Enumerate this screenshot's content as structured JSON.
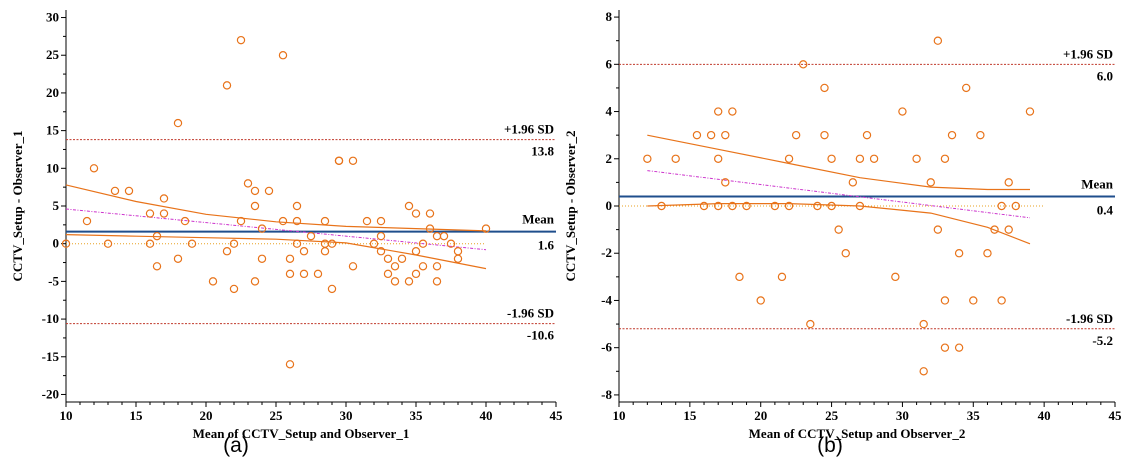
{
  "colors": {
    "points": "#E8731A",
    "mean_line": "#1F4E8C",
    "sd_line": "#C0392B",
    "ci_line": "#E8731A",
    "regression_line": "#CC33CC",
    "zero_line": "#E8A020"
  },
  "chart_data": [
    {
      "type": "scatter",
      "panel_label": "(a)",
      "xlabel": "Mean of CCTV_Setup and Observer_1",
      "ylabel": "CCTV_Setup - Observer_1",
      "xlim": [
        10,
        45
      ],
      "ylim": [
        -21,
        31
      ],
      "x_ticks": [
        10,
        15,
        20,
        25,
        30,
        35,
        40,
        45
      ],
      "y_ticks": [
        -20,
        -15,
        -10,
        -5,
        0,
        5,
        10,
        15,
        20,
        25,
        30
      ],
      "mean": {
        "label": "Mean",
        "value_label": "1.6",
        "value": 1.6
      },
      "upper_loa": {
        "label": "+1.96 SD",
        "value_label": "13.8",
        "value": 13.8
      },
      "lower_loa": {
        "label": "-1.96 SD",
        "value_label": "-10.6",
        "value": -10.6
      },
      "regression": {
        "x": [
          10,
          40
        ],
        "y": [
          4.6,
          -0.8
        ]
      },
      "ci_upper": {
        "x": [
          10,
          15,
          20,
          25,
          30,
          35,
          40
        ],
        "y": [
          7.8,
          5.6,
          3.9,
          2.9,
          2.3,
          2.0,
          1.7
        ]
      },
      "ci_lower": {
        "x": [
          10,
          15,
          20,
          25,
          30,
          35,
          40
        ],
        "y": [
          1.2,
          1.0,
          0.8,
          0.6,
          0.1,
          -1.5,
          -3.3
        ]
      },
      "points": [
        {
          "x": 10,
          "y": 0
        },
        {
          "x": 11.5,
          "y": 3
        },
        {
          "x": 12,
          "y": 10
        },
        {
          "x": 13,
          "y": 0
        },
        {
          "x": 13.5,
          "y": 7
        },
        {
          "x": 14.5,
          "y": 7
        },
        {
          "x": 16,
          "y": 0
        },
        {
          "x": 16,
          "y": 4
        },
        {
          "x": 16.5,
          "y": 1
        },
        {
          "x": 16.5,
          "y": -3
        },
        {
          "x": 17,
          "y": 4
        },
        {
          "x": 17,
          "y": 6
        },
        {
          "x": 18,
          "y": 16
        },
        {
          "x": 18,
          "y": -2
        },
        {
          "x": 18.5,
          "y": 3
        },
        {
          "x": 19,
          "y": 0
        },
        {
          "x": 20.5,
          "y": -5
        },
        {
          "x": 21.5,
          "y": 21
        },
        {
          "x": 21.5,
          "y": -1
        },
        {
          "x": 22,
          "y": 0
        },
        {
          "x": 22,
          "y": -6
        },
        {
          "x": 22.5,
          "y": 27
        },
        {
          "x": 22.5,
          "y": 3
        },
        {
          "x": 23,
          "y": 8
        },
        {
          "x": 23.5,
          "y": 7
        },
        {
          "x": 23.5,
          "y": 5
        },
        {
          "x": 23.5,
          "y": -5
        },
        {
          "x": 24,
          "y": 2
        },
        {
          "x": 24,
          "y": -2
        },
        {
          "x": 24.5,
          "y": 7
        },
        {
          "x": 25.5,
          "y": 25
        },
        {
          "x": 25.5,
          "y": 3
        },
        {
          "x": 26,
          "y": -16
        },
        {
          "x": 26,
          "y": -2
        },
        {
          "x": 26,
          "y": -4
        },
        {
          "x": 26.5,
          "y": 5
        },
        {
          "x": 26.5,
          "y": 3
        },
        {
          "x": 26.5,
          "y": 0
        },
        {
          "x": 27,
          "y": -1
        },
        {
          "x": 27,
          "y": -4
        },
        {
          "x": 27.5,
          "y": 1
        },
        {
          "x": 28,
          "y": -4
        },
        {
          "x": 28.5,
          "y": 3
        },
        {
          "x": 28.5,
          "y": 0
        },
        {
          "x": 28.5,
          "y": -1
        },
        {
          "x": 29,
          "y": -6
        },
        {
          "x": 29,
          "y": 0
        },
        {
          "x": 29.5,
          "y": 11
        },
        {
          "x": 29.5,
          "y": 11
        },
        {
          "x": 30.5,
          "y": 11
        },
        {
          "x": 30.5,
          "y": -3
        },
        {
          "x": 31.5,
          "y": 3
        },
        {
          "x": 32,
          "y": 0
        },
        {
          "x": 32.5,
          "y": 3
        },
        {
          "x": 32.5,
          "y": 1
        },
        {
          "x": 32.5,
          "y": -1
        },
        {
          "x": 33,
          "y": -2
        },
        {
          "x": 33,
          "y": -4
        },
        {
          "x": 33.5,
          "y": -3
        },
        {
          "x": 33.5,
          "y": -5
        },
        {
          "x": 34,
          "y": -2
        },
        {
          "x": 34.5,
          "y": 5
        },
        {
          "x": 34.5,
          "y": -5
        },
        {
          "x": 35,
          "y": 4
        },
        {
          "x": 35,
          "y": -1
        },
        {
          "x": 35,
          "y": -4
        },
        {
          "x": 35.5,
          "y": 0
        },
        {
          "x": 35.5,
          "y": -3
        },
        {
          "x": 36,
          "y": 4
        },
        {
          "x": 36,
          "y": 2
        },
        {
          "x": 36.5,
          "y": 1
        },
        {
          "x": 36.5,
          "y": -3
        },
        {
          "x": 36.5,
          "y": -5
        },
        {
          "x": 37,
          "y": 1
        },
        {
          "x": 37.5,
          "y": 0
        },
        {
          "x": 38,
          "y": -1
        },
        {
          "x": 38,
          "y": -2
        },
        {
          "x": 40,
          "y": 2
        }
      ]
    },
    {
      "type": "scatter",
      "panel_label": "(b)",
      "xlabel": "Mean of CCTV_Setup and Observer_2",
      "ylabel": "CCTV_Setup - Observer_2",
      "xlim": [
        10,
        45
      ],
      "ylim": [
        -8.3,
        8.3
      ],
      "x_ticks": [
        10,
        15,
        20,
        25,
        30,
        35,
        40,
        45
      ],
      "y_ticks": [
        -8,
        -6,
        -4,
        -2,
        0,
        2,
        4,
        6,
        8
      ],
      "mean": {
        "label": "Mean",
        "value_label": "0.4",
        "value": 0.4
      },
      "upper_loa": {
        "label": "+1.96 SD",
        "value_label": "6.0",
        "value": 6.0
      },
      "lower_loa": {
        "label": "-1.96 SD",
        "value_label": "-5.2",
        "value": -5.2
      },
      "regression": {
        "x": [
          12,
          39
        ],
        "y": [
          1.5,
          -0.5
        ]
      },
      "ci_upper": {
        "x": [
          12,
          17,
          22,
          27,
          32,
          36,
          39
        ],
        "y": [
          3.0,
          2.4,
          1.8,
          1.2,
          0.8,
          0.7,
          0.7
        ]
      },
      "ci_lower": {
        "x": [
          12,
          17,
          22,
          27,
          32,
          36,
          39
        ],
        "y": [
          0.0,
          0.1,
          0.1,
          0.0,
          -0.3,
          -0.9,
          -1.6
        ]
      },
      "points": [
        {
          "x": 12,
          "y": 2
        },
        {
          "x": 13,
          "y": 0
        },
        {
          "x": 14,
          "y": 2
        },
        {
          "x": 15.5,
          "y": 3
        },
        {
          "x": 16,
          "y": 0
        },
        {
          "x": 16.5,
          "y": 3
        },
        {
          "x": 17,
          "y": 4
        },
        {
          "x": 17,
          "y": 2
        },
        {
          "x": 17,
          "y": 0
        },
        {
          "x": 17.5,
          "y": 3
        },
        {
          "x": 17.5,
          "y": 1
        },
        {
          "x": 18,
          "y": 4
        },
        {
          "x": 18,
          "y": 0
        },
        {
          "x": 18.5,
          "y": -3
        },
        {
          "x": 19,
          "y": 0
        },
        {
          "x": 20,
          "y": -4
        },
        {
          "x": 21,
          "y": 0
        },
        {
          "x": 21.5,
          "y": -3
        },
        {
          "x": 22,
          "y": 2
        },
        {
          "x": 22,
          "y": 0
        },
        {
          "x": 22.5,
          "y": 3
        },
        {
          "x": 23,
          "y": 6
        },
        {
          "x": 23.5,
          "y": -5
        },
        {
          "x": 24,
          "y": 0
        },
        {
          "x": 24.5,
          "y": 3
        },
        {
          "x": 24.5,
          "y": 5
        },
        {
          "x": 25,
          "y": 2
        },
        {
          "x": 25,
          "y": 0
        },
        {
          "x": 25.5,
          "y": -1
        },
        {
          "x": 26,
          "y": -2
        },
        {
          "x": 26.5,
          "y": 1
        },
        {
          "x": 27,
          "y": 2
        },
        {
          "x": 27,
          "y": 0
        },
        {
          "x": 27.5,
          "y": 3
        },
        {
          "x": 28,
          "y": 2
        },
        {
          "x": 29.5,
          "y": -3
        },
        {
          "x": 30,
          "y": 4
        },
        {
          "x": 31,
          "y": 2
        },
        {
          "x": 31.5,
          "y": -7
        },
        {
          "x": 31.5,
          "y": -5
        },
        {
          "x": 32,
          "y": 1
        },
        {
          "x": 32.5,
          "y": 7
        },
        {
          "x": 32.5,
          "y": -1
        },
        {
          "x": 33,
          "y": 2
        },
        {
          "x": 33,
          "y": -4
        },
        {
          "x": 33,
          "y": -6
        },
        {
          "x": 33.5,
          "y": 3
        },
        {
          "x": 34,
          "y": -2
        },
        {
          "x": 34,
          "y": -6
        },
        {
          "x": 34.5,
          "y": 5
        },
        {
          "x": 35,
          "y": -4
        },
        {
          "x": 35.5,
          "y": 3
        },
        {
          "x": 36,
          "y": -2
        },
        {
          "x": 36.5,
          "y": -1
        },
        {
          "x": 37,
          "y": 0
        },
        {
          "x": 37,
          "y": -4
        },
        {
          "x": 37.5,
          "y": 1
        },
        {
          "x": 37.5,
          "y": -1
        },
        {
          "x": 38,
          "y": 0
        },
        {
          "x": 39,
          "y": 4
        }
      ]
    }
  ]
}
